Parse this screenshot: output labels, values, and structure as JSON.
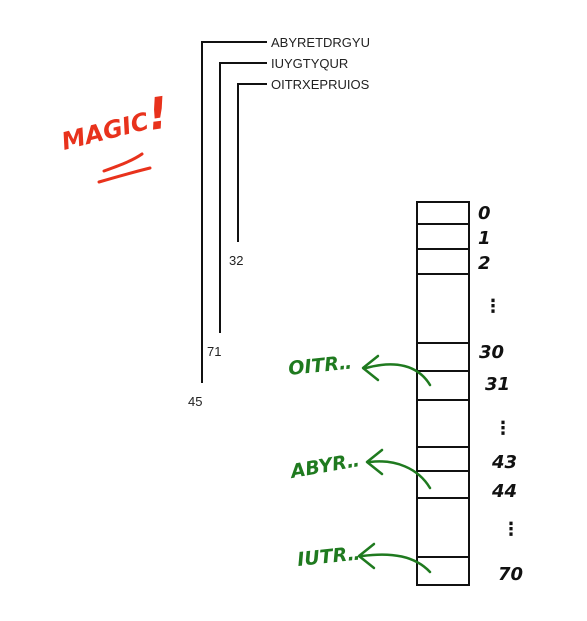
{
  "strings": [
    {
      "text": "ABYRETDRGYU",
      "value": "45"
    },
    {
      "text": "IUYGTYQUR",
      "value": "71"
    },
    {
      "text": "OITRXEPRUIOS",
      "value": "32"
    }
  ],
  "annotation": {
    "text": "MAGIC",
    "mark": "!"
  },
  "table_indices": [
    "0",
    "1",
    "2",
    "30",
    "31",
    "43",
    "44",
    "70"
  ],
  "ellipsis": "⋮",
  "pointers": [
    {
      "label": "OITR‥",
      "target_index": "31"
    },
    {
      "label": "ABYR‥",
      "target_index": "44"
    },
    {
      "label": "IUTR‥",
      "target_index": "70"
    }
  ],
  "colors": {
    "annotation": "#e8321c",
    "pointers": "#1f7a1f",
    "ink": "#111111"
  }
}
